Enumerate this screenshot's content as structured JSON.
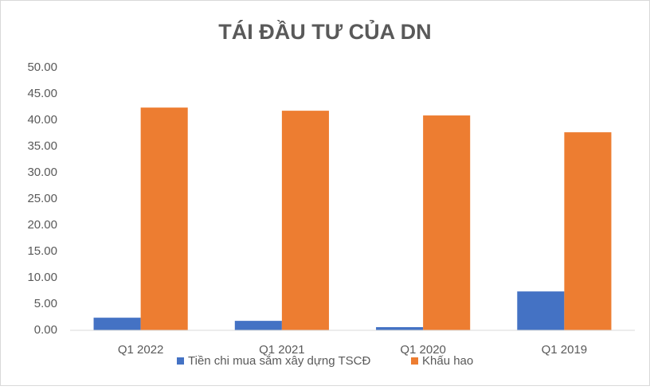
{
  "chart_data": {
    "type": "bar",
    "title": "TÁI ĐẦU TƯ CỦA DN",
    "categories": [
      "Q1 2022",
      "Q1 2021",
      "Q1 2020",
      "Q1 2019"
    ],
    "series": [
      {
        "name": "Tiền chi mua sắm xây dựng TSCĐ",
        "color": "#4472c4",
        "values": [
          2.4,
          1.8,
          0.6,
          7.4
        ]
      },
      {
        "name": "Khấu hao",
        "color": "#ed7d31",
        "values": [
          42.4,
          41.8,
          40.9,
          37.7
        ]
      }
    ],
    "ylim": [
      0,
      50
    ],
    "yticks": [
      {
        "value": 0,
        "label": "0.00"
      },
      {
        "value": 5,
        "label": "5.00"
      },
      {
        "value": 10,
        "label": "10.00"
      },
      {
        "value": 15,
        "label": "15.00"
      },
      {
        "value": 20,
        "label": "20.00"
      },
      {
        "value": 25,
        "label": "25.00"
      },
      {
        "value": 30,
        "label": "30.00"
      },
      {
        "value": 35,
        "label": "35.00"
      },
      {
        "value": 40,
        "label": "40.00"
      },
      {
        "value": 45,
        "label": "45.00"
      },
      {
        "value": 50,
        "label": "50.00"
      }
    ],
    "grid": false,
    "legend": "bottom"
  }
}
